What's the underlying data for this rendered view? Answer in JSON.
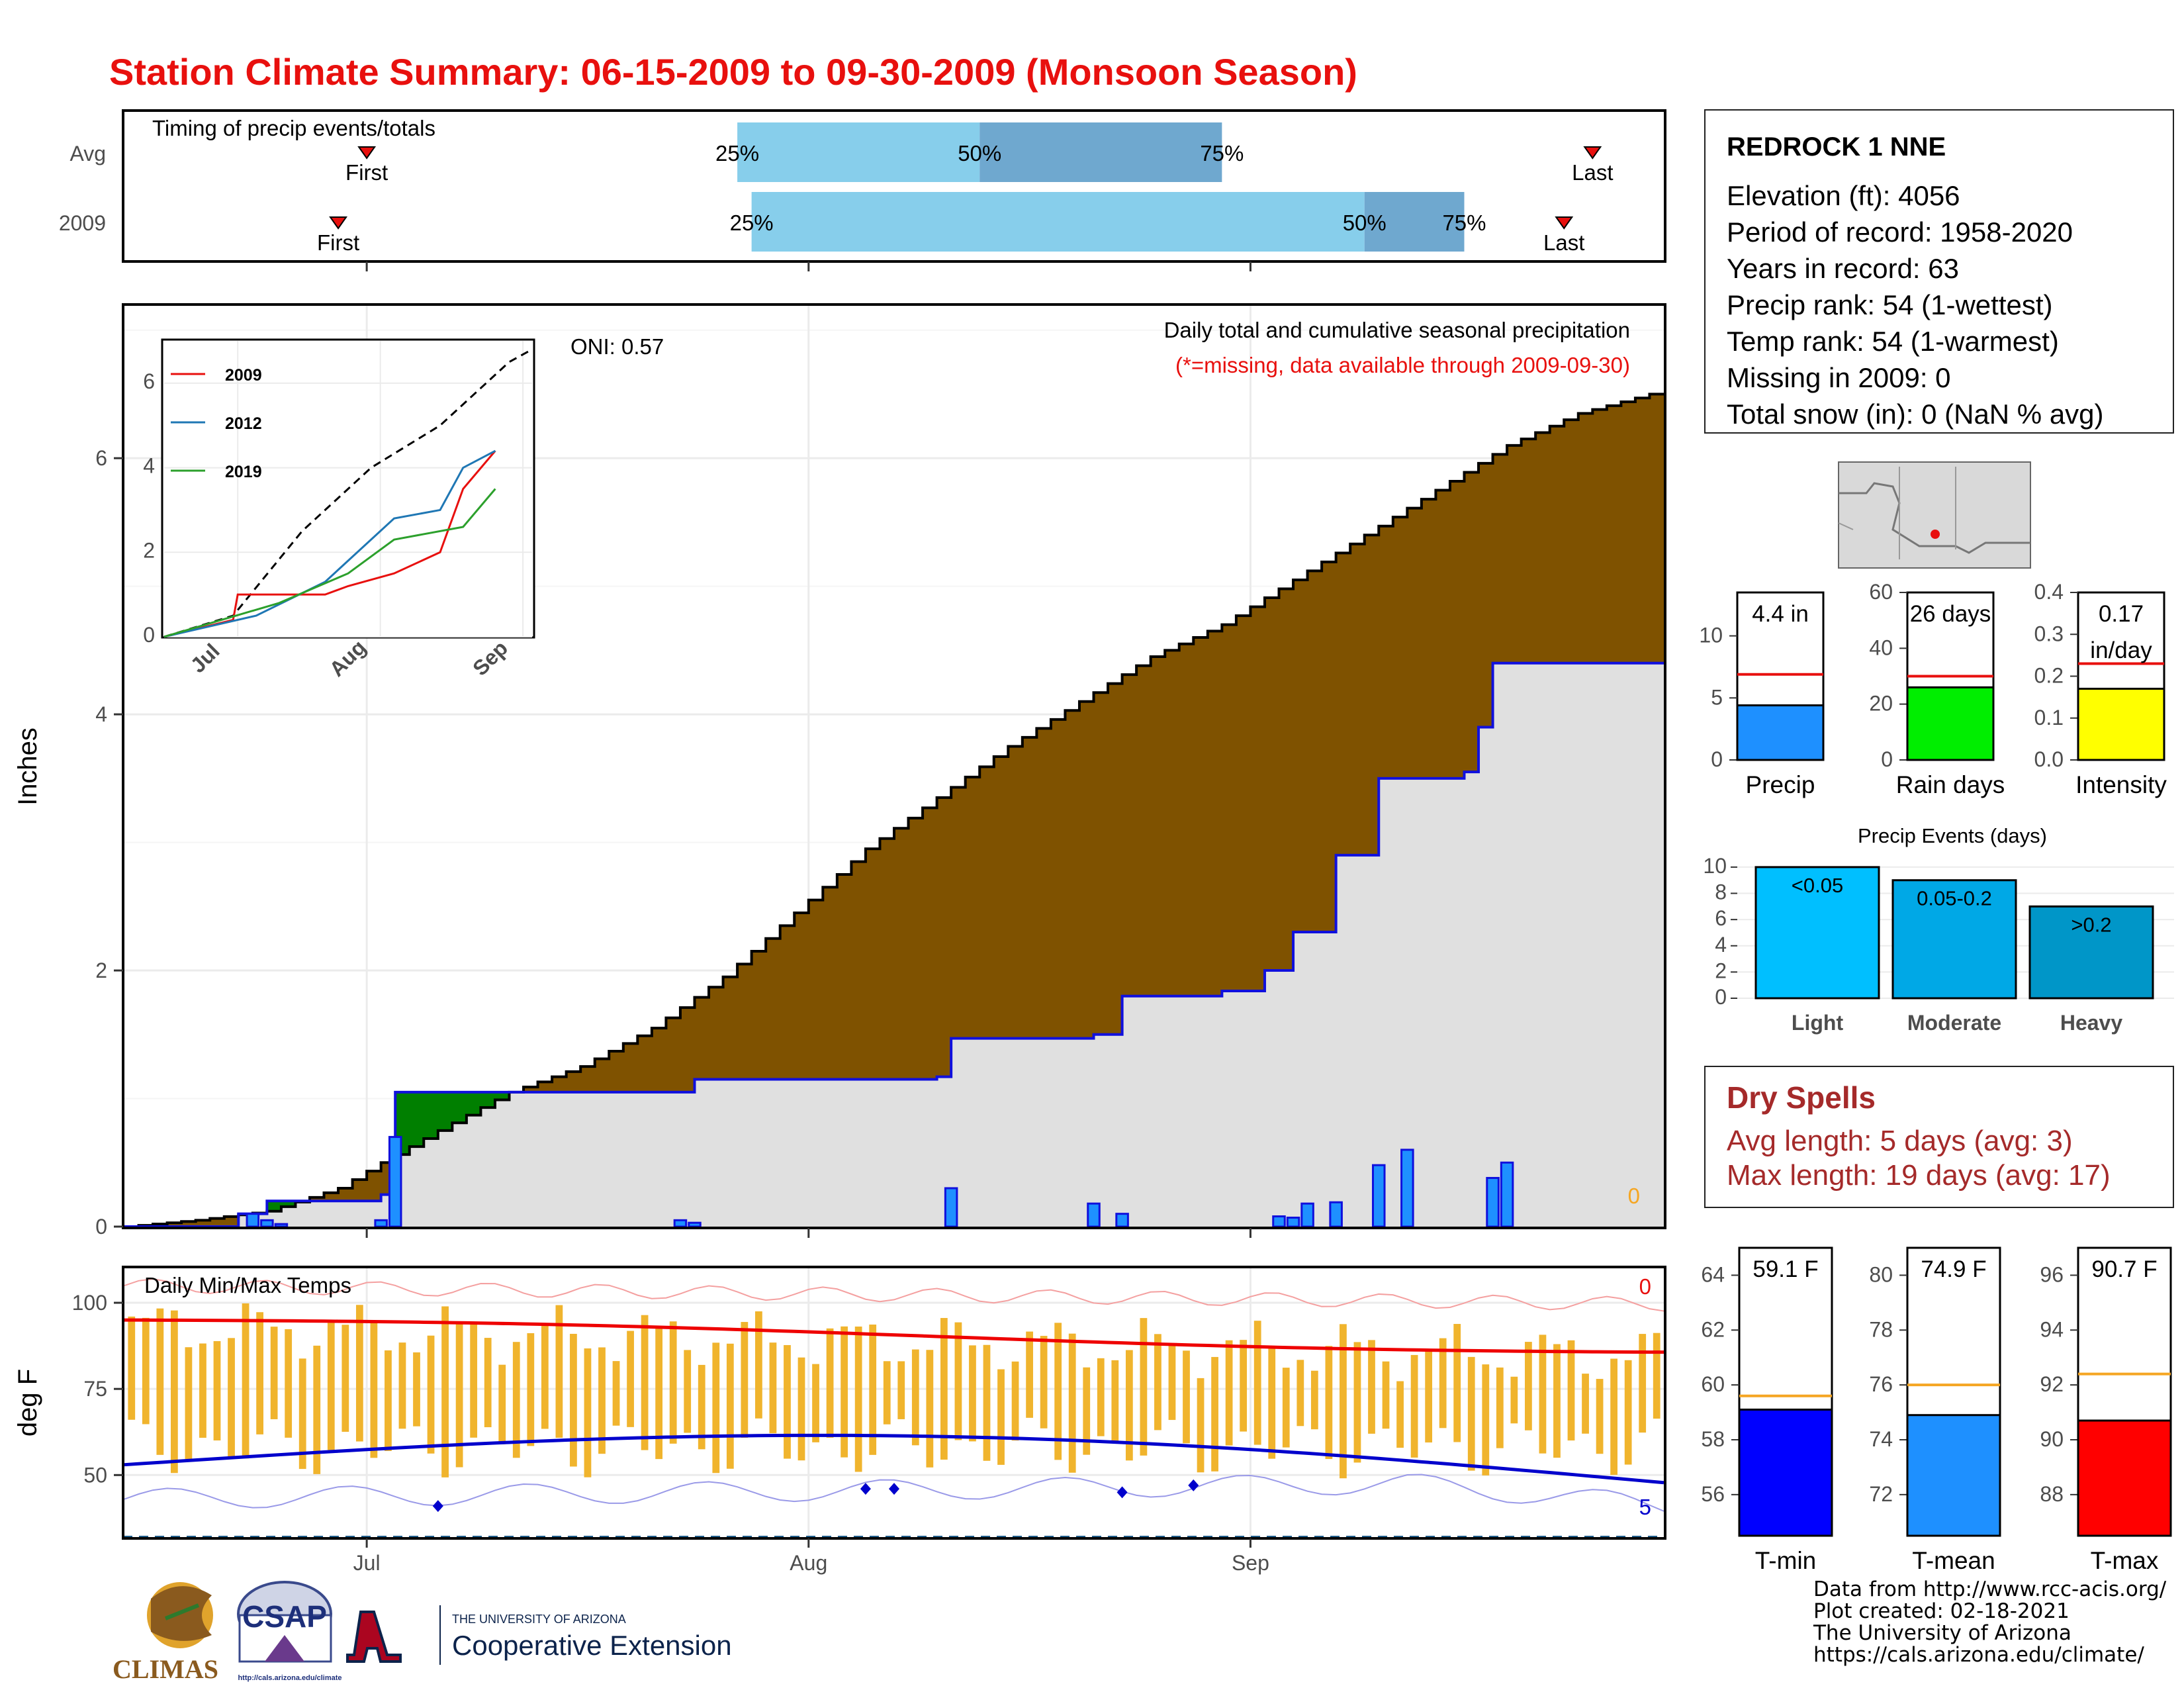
{
  "title": "Station Climate Summary: 06-15-2009 to 09-30-2009 (Monsoon Season)",
  "timing": {
    "label": "Timing of precip events/totals",
    "rows": [
      {
        "name": "Avg",
        "first_label": "First",
        "last_label": "Last",
        "p25": "25%",
        "p50": "50%",
        "p75": "75%"
      },
      {
        "name": "2009",
        "first_label": "First",
        "last_label": "Last",
        "p25": "25%",
        "p50": "50%",
        "p75": "75%"
      }
    ]
  },
  "main_panel": {
    "oni": "ONI: 0.57",
    "label": "Daily total and cumulative seasonal precipitation",
    "note": "(*=missing, data available through 2009-09-30)",
    "missing_count": "0",
    "y_axis_label": "Inches",
    "y_ticks": [
      "0",
      "2",
      "4",
      "6"
    ]
  },
  "inset": {
    "legend": [
      "2009",
      "2012",
      "2019"
    ],
    "y_ticks": [
      "0",
      "2",
      "4",
      "6"
    ],
    "x_ticks": [
      "Jul",
      "Aug",
      "Sep"
    ]
  },
  "temp_panel": {
    "label": "Daily Min/Max Temps",
    "y_axis_label": "deg F",
    "y_ticks": [
      "100",
      "75",
      "50"
    ],
    "count_high": "0",
    "count_low": "5"
  },
  "x_ticks": [
    "Jul",
    "Aug",
    "Sep"
  ],
  "station": {
    "name": "REDROCK 1 NNE",
    "lines": [
      "Elevation (ft): 4056",
      "Period of record: 1958-2020",
      "Years in record: 63",
      "Precip rank: 54 (1-wettest)",
      "Temp rank: 54 (1-warmest)",
      "Missing in 2009: 0",
      "Total snow (in): 0 (NaN % avg)"
    ]
  },
  "summary_bars": [
    {
      "label": "Precip",
      "value_text": "4.4 in",
      "ticks": [
        "0",
        "5",
        "10"
      ]
    },
    {
      "label": "Rain days",
      "value_text": "26 days",
      "ticks": [
        "0",
        "20",
        "40",
        "60"
      ]
    },
    {
      "label": "Intensity",
      "value_text": "0.17 in/day",
      "value_line1": "0.17",
      "value_line2": "in/day",
      "ticks": [
        "0.0",
        "0.1",
        "0.2",
        "0.3",
        "0.4"
      ]
    }
  ],
  "events": {
    "title": "Precip Events (days)",
    "ticks": [
      "0",
      "2",
      "4",
      "6",
      "8",
      "10"
    ],
    "bars": [
      {
        "category": "Light",
        "label": "<0.05"
      },
      {
        "category": "Moderate",
        "label": "0.05-0.2"
      },
      {
        "category": "Heavy",
        "label": ">0.2"
      }
    ]
  },
  "dry_spells": {
    "title": "Dry Spells",
    "avg": "Avg length: 5 days (avg: 3)",
    "max": "Max length: 19 days (avg: 17)"
  },
  "temp_bars": [
    {
      "label": "T-min",
      "value_text": "59.1 F",
      "ticks": [
        "56",
        "58",
        "60",
        "62",
        "64"
      ]
    },
    {
      "label": "T-mean",
      "value_text": "74.9 F",
      "ticks": [
        "72",
        "74",
        "76",
        "78",
        "80"
      ]
    },
    {
      "label": "T-max",
      "value_text": "90.7 F",
      "ticks": [
        "88",
        "90",
        "92",
        "94",
        "96"
      ]
    }
  ],
  "credits": [
    "Data from http://www.rcc-acis.org/",
    "Plot created: 02-18-2021",
    "The University of Arizona",
    "https://cals.arizona.edu/climate/"
  ],
  "logos": {
    "climas": "CLIMAS",
    "csap": "CSAP",
    "csap_url": "http://cals.arizona.edu/climate",
    "ua_small": "THE UNIVERSITY OF ARIZONA",
    "ua_big": "Cooperative Extension"
  },
  "colors": {
    "title": "#e8100e",
    "cum_fill": "#7f5200",
    "avg_fill": "#e0e0e0",
    "surplus_fill": "#007f00",
    "daily_bar": "#1e90ff",
    "temp_bar": "#f0b42d",
    "avg_max": "#ee0000",
    "avg_min": "#0000cc"
  },
  "chart_data": [
    {
      "type": "bar",
      "name": "timing",
      "rows": [
        "Avg",
        "2009"
      ],
      "first_day": [
        17,
        15
      ],
      "p25_day": [
        43,
        44
      ],
      "p50_day": [
        60,
        87
      ],
      "p75_day": [
        77,
        94
      ],
      "last_day": [
        103,
        101
      ]
    },
    {
      "type": "area",
      "name": "cumulative precipitation",
      "x_start": "2009-06-15",
      "x_end": "2009-09-30",
      "ylim": [
        0,
        7.2
      ],
      "avg_cumulative": [
        [
          "2009-06-15",
          0
        ],
        [
          "2009-06-20",
          0.05
        ],
        [
          "2009-06-25",
          0.12
        ],
        [
          "2009-06-30",
          0.3
        ],
        [
          "2009-07-03",
          0.5
        ],
        [
          "2009-07-07",
          0.75
        ],
        [
          "2009-07-12",
          1.05
        ],
        [
          "2009-07-17",
          1.25
        ],
        [
          "2009-07-22",
          1.55
        ],
        [
          "2009-07-27",
          1.95
        ],
        [
          "2009-08-01",
          2.45
        ],
        [
          "2009-08-06",
          2.95
        ],
        [
          "2009-08-11",
          3.35
        ],
        [
          "2009-08-16",
          3.75
        ],
        [
          "2009-08-21",
          4.1
        ],
        [
          "2009-08-26",
          4.45
        ],
        [
          "2009-08-31",
          4.7
        ],
        [
          "2009-09-05",
          5.05
        ],
        [
          "2009-09-10",
          5.4
        ],
        [
          "2009-09-15",
          5.75
        ],
        [
          "2009-09-20",
          6.1
        ],
        [
          "2009-09-25",
          6.35
        ],
        [
          "2009-09-30",
          6.5
        ]
      ],
      "obs_cumulative": [
        [
          "2009-06-15",
          0
        ],
        [
          "2009-06-23",
          0.1
        ],
        [
          "2009-06-25",
          0.2
        ],
        [
          "2009-07-03",
          0.25
        ],
        [
          "2009-07-04",
          1.05
        ],
        [
          "2009-07-23",
          1.05
        ],
        [
          "2009-07-25",
          1.15
        ],
        [
          "2009-08-11",
          1.17
        ],
        [
          "2009-08-12",
          1.47
        ],
        [
          "2009-08-22",
          1.5
        ],
        [
          "2009-08-24",
          1.8
        ],
        [
          "2009-08-31",
          1.84
        ],
        [
          "2009-09-03",
          2.0
        ],
        [
          "2009-09-05",
          2.3
        ],
        [
          "2009-09-08",
          2.9
        ],
        [
          "2009-09-11",
          3.5
        ],
        [
          "2009-09-17",
          3.55
        ],
        [
          "2009-09-18",
          3.9
        ],
        [
          "2009-09-19",
          4.4
        ],
        [
          "2009-09-30",
          4.4
        ]
      ],
      "daily_bars": [
        [
          "2009-06-23",
          0.1
        ],
        [
          "2009-06-24",
          0.05
        ],
        [
          "2009-06-25",
          0.02
        ],
        [
          "2009-07-02",
          0.05
        ],
        [
          "2009-07-03",
          0.7
        ],
        [
          "2009-07-23",
          0.05
        ],
        [
          "2009-07-24",
          0.03
        ],
        [
          "2009-08-11",
          0.3
        ],
        [
          "2009-08-21",
          0.18
        ],
        [
          "2009-08-23",
          0.1
        ],
        [
          "2009-09-03",
          0.08
        ],
        [
          "2009-09-04",
          0.07
        ],
        [
          "2009-09-05",
          0.18
        ],
        [
          "2009-09-07",
          0.19
        ],
        [
          "2009-09-10",
          0.48
        ],
        [
          "2009-09-12",
          0.6
        ],
        [
          "2009-09-18",
          0.38
        ],
        [
          "2009-09-19",
          0.5
        ]
      ]
    },
    {
      "type": "line",
      "name": "inset cumulative comparison",
      "ylim": [
        0,
        7
      ],
      "series": [
        {
          "name": "2009",
          "values": [
            [
              0,
              0
            ],
            [
              15,
              0.4
            ],
            [
              16,
              1.0
            ],
            [
              35,
              1.0
            ],
            [
              40,
              1.2
            ],
            [
              50,
              1.5
            ],
            [
              60,
              2.0
            ],
            [
              65,
              3.5
            ],
            [
              72,
              4.4
            ]
          ]
        },
        {
          "name": "2012",
          "values": [
            [
              0,
              0
            ],
            [
              20,
              0.5
            ],
            [
              35,
              1.3
            ],
            [
              50,
              2.8
            ],
            [
              60,
              3.0
            ],
            [
              65,
              4.0
            ],
            [
              72,
              4.4
            ]
          ]
        },
        {
          "name": "2019",
          "values": [
            [
              0,
              0
            ],
            [
              25,
              0.8
            ],
            [
              40,
              1.5
            ],
            [
              50,
              2.3
            ],
            [
              65,
              2.6
            ],
            [
              72,
              3.5
            ]
          ]
        }
      ],
      "avg_dashed": [
        [
          0,
          0
        ],
        [
          15,
          0.5
        ],
        [
          30,
          2.5
        ],
        [
          45,
          4.0
        ],
        [
          60,
          5.0
        ],
        [
          75,
          6.5
        ],
        [
          80,
          6.8
        ]
      ]
    },
    {
      "type": "bar",
      "name": "daily temperatures",
      "ylim": [
        32,
        110
      ],
      "avg_max_start": 95,
      "avg_max_end": 86,
      "avg_min_start": 53,
      "avg_min_end": 49,
      "freeze_line": 32
    },
    {
      "type": "bar",
      "name": "summary precip",
      "categories": [
        "Precip",
        "Rain days",
        "Intensity"
      ],
      "values": [
        4.4,
        26,
        0.17
      ],
      "averages": [
        6.9,
        30,
        0.23
      ],
      "ylims": [
        [
          0,
          13.5
        ],
        [
          0,
          60
        ],
        [
          0,
          0.4
        ]
      ]
    },
    {
      "type": "bar",
      "name": "Precip Events (days)",
      "categories": [
        "Light",
        "Moderate",
        "Heavy"
      ],
      "values": [
        10,
        9,
        7
      ],
      "ylim": [
        0,
        10
      ]
    },
    {
      "type": "bar",
      "name": "summary temps",
      "categories": [
        "T-min",
        "T-mean",
        "T-max"
      ],
      "values": [
        59.1,
        74.9,
        90.7
      ],
      "averages": [
        59.6,
        76.0,
        92.4
      ],
      "ylims": [
        [
          54.5,
          65
        ],
        [
          70.5,
          81
        ],
        [
          86.5,
          97
        ]
      ]
    }
  ]
}
